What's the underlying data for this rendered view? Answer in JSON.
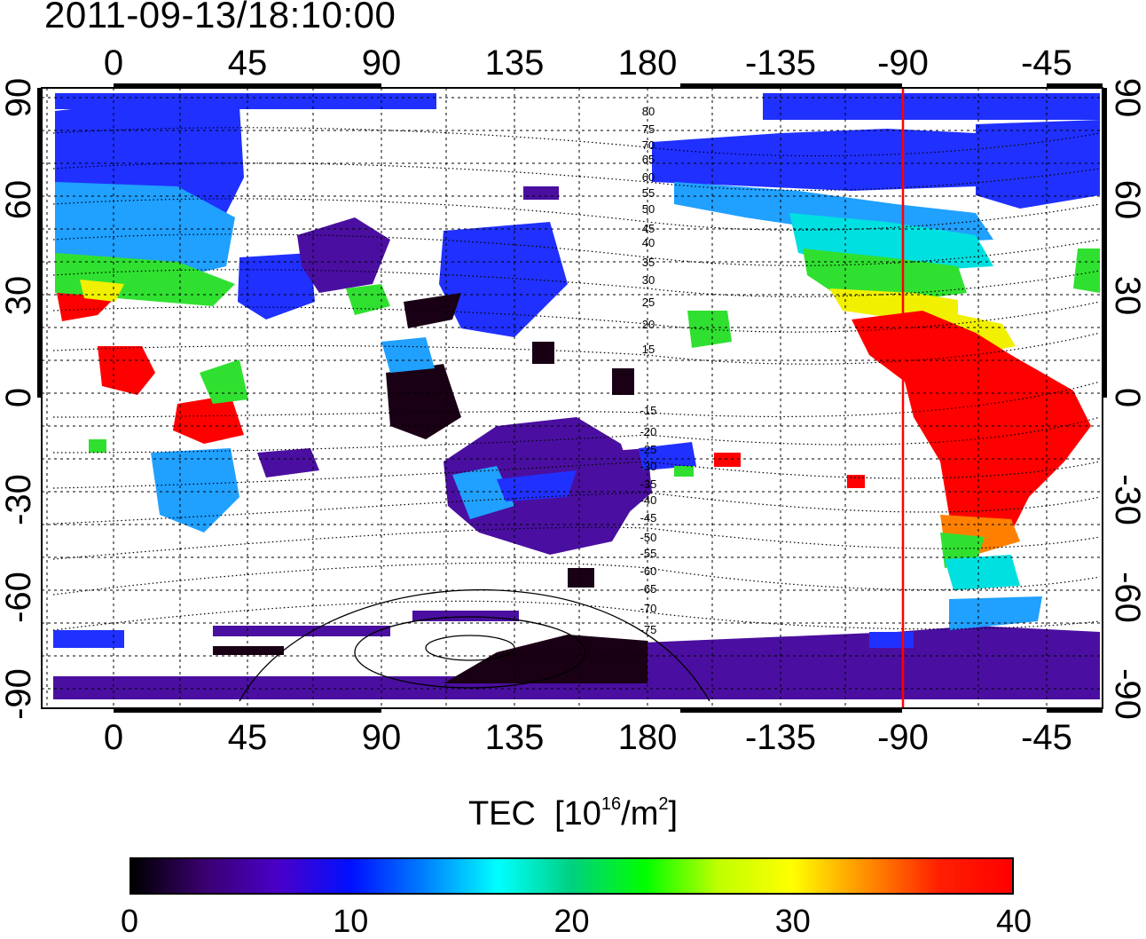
{
  "timestamp": "2011-09-13/18:10:00",
  "x_ticks_top": [
    "0",
    "45",
    "90",
    "135",
    "180",
    "-135",
    "-90",
    "-45"
  ],
  "x_ticks_bottom": [
    "0",
    "45",
    "90",
    "135",
    "180",
    "-135",
    "-90",
    "-45"
  ],
  "y_ticks_left": [
    "90",
    "60",
    "30",
    "0",
    "-30",
    "-60",
    "-90"
  ],
  "y_ticks_right": [
    "90",
    "60",
    "30",
    "0",
    "-30",
    "-60",
    "-90"
  ],
  "contour_labels": [
    "80",
    "75",
    "70",
    "65",
    "60",
    "55",
    "50",
    "45",
    "40",
    "35",
    "30",
    "25",
    "20",
    "15",
    "-15",
    "-20",
    "-25",
    "-30",
    "-35",
    "-40",
    "-45",
    "-50",
    "-55",
    "-60",
    "-65",
    "-70",
    "-75"
  ],
  "colorbar": {
    "title_main": "TEC",
    "title_unit_open": "[10",
    "title_unit_exp": "16",
    "title_unit_mid": "/m",
    "title_unit_exp2": "2",
    "title_unit_close": "]",
    "ticks": [
      "0",
      "10",
      "20",
      "30",
      "40"
    ],
    "stops": [
      "#000000",
      "#3a0070",
      "#4a00c8",
      "#0010ff",
      "#0080ff",
      "#00ffff",
      "#00d080",
      "#00ff00",
      "#c0ff00",
      "#ffff00",
      "#ff9000",
      "#ff2000",
      "#ff0000"
    ]
  },
  "colors": {
    "dark": "#1a0015",
    "purple": "#4a0fa0",
    "blue": "#2030ff",
    "lightblue": "#20a0ff",
    "cyan": "#00e0e0",
    "green": "#30e030",
    "yellow": "#f0f000",
    "orange": "#ff8000",
    "red": "#ff0000"
  },
  "meridian_marker": {
    "lon": -90,
    "color": "#ff0000"
  }
}
